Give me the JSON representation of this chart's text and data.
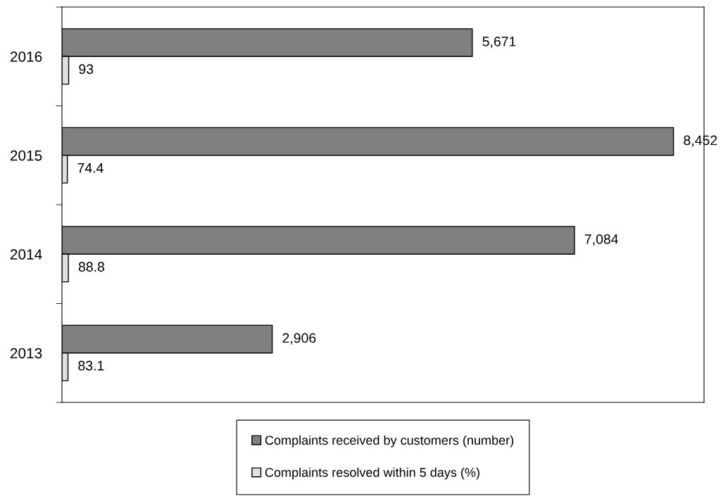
{
  "chart_data": {
    "type": "bar",
    "orientation": "horizontal",
    "categories": [
      "2016",
      "2015",
      "2014",
      "2013"
    ],
    "series": [
      {
        "name": "Complaints received by customers (number)",
        "color": "#808080",
        "values": [
          5671,
          8452,
          7084,
          2906
        ],
        "value_labels": [
          "5,671",
          "8,452",
          "7,084",
          "2,906"
        ]
      },
      {
        "name": "Complaints resolved within 5 days (%)",
        "color": "#e0e0e0",
        "values": [
          93,
          74.4,
          88.8,
          83.1
        ],
        "value_labels": [
          "93",
          "74.4",
          "88.8",
          "83.1"
        ]
      }
    ],
    "tick_labels": "y",
    "grid": false,
    "legend": "bottom"
  }
}
